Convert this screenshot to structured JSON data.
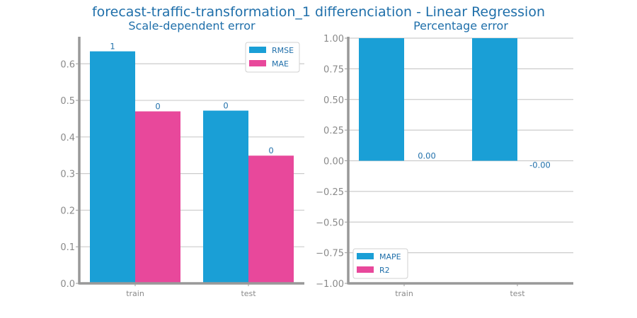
{
  "figure": {
    "title": "forecast-traffic-transformation_1 differenciation - Linear Regression"
  },
  "colors": {
    "title": "#1f6faa",
    "tick_label": "#8a8a8a",
    "data_label": "#1f6faa",
    "axis": "#999999",
    "grid": "#cccccc",
    "series_1": "#1a9fd6",
    "series_2": "#e8489b"
  },
  "chart_data": [
    {
      "type": "bar",
      "title": "Scale-dependent error",
      "xlabel": "",
      "ylabel": "",
      "categories": [
        "train",
        "test"
      ],
      "series": [
        {
          "name": "RMSE",
          "values": [
            0.634,
            0.472
          ],
          "labels": [
            "1",
            "0"
          ]
        },
        {
          "name": "MAE",
          "values": [
            0.47,
            0.349
          ],
          "labels": [
            "0",
            "0"
          ]
        }
      ],
      "ylim": [
        0,
        0.67
      ],
      "yticks": [
        0.0,
        0.1,
        0.2,
        0.3,
        0.4,
        0.5,
        0.6
      ],
      "ytick_labels": [
        "0.0",
        "0.1",
        "0.2",
        "0.3",
        "0.4",
        "0.5",
        "0.6"
      ],
      "grid": true,
      "legend": "top-right"
    },
    {
      "type": "bar",
      "title": "Percentage error",
      "xlabel": "",
      "ylabel": "",
      "categories": [
        "train",
        "test"
      ],
      "series": [
        {
          "name": "MAPE",
          "values": [
            1.0,
            1.0
          ],
          "labels": [
            "",
            ""
          ]
        },
        {
          "name": "R2",
          "values": [
            0.0,
            0.0
          ],
          "labels": [
            "0.00",
            "-0.00"
          ]
        }
      ],
      "ylim": [
        -1.0,
        1.0
      ],
      "yticks": [
        -1.0,
        -0.75,
        -0.5,
        -0.25,
        0.0,
        0.25,
        0.5,
        0.75,
        1.0
      ],
      "ytick_labels": [
        "−1.00",
        "−0.75",
        "−0.50",
        "−0.25",
        "0.00",
        "0.25",
        "0.50",
        "0.75",
        "1.00"
      ],
      "grid": true,
      "legend": "bottom-left"
    }
  ]
}
